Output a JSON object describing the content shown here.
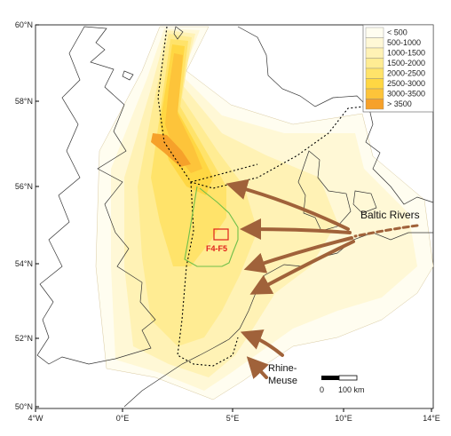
{
  "map": {
    "lat_labels": [
      "60°N",
      "58°N",
      "56°N",
      "54°N",
      "52°N",
      "50°N"
    ],
    "lon_labels": [
      "4°W",
      "0°E",
      "5°E",
      "10°E",
      "14°E"
    ],
    "legend": {
      "classes": [
        {
          "label": "< 500",
          "color": "#fffdf0"
        },
        {
          "label": "500-1000",
          "color": "#fff8d6"
        },
        {
          "label": "1000-1500",
          "color": "#fff2b5"
        },
        {
          "label": "1500-2000",
          "color": "#ffec93"
        },
        {
          "label": "2000-2500",
          "color": "#ffe36a"
        },
        {
          "label": "2500-3000",
          "color": "#ffd743"
        },
        {
          "label": "3000-3500",
          "color": "#fdc43a"
        },
        {
          "label": "> 3500",
          "color": "#f6a12a"
        }
      ]
    },
    "labels": {
      "baltic_rivers": "Baltic Rivers",
      "rhine_meuse_line1": "Rhine-",
      "rhine_meuse_line2": "Meuse",
      "box_label": "F4-F5"
    },
    "scale_bar": {
      "zero": "0",
      "distance": "100 km"
    },
    "colors": {
      "arrow": "#a0623a",
      "boundary": "#000000",
      "green_line": "#6fbf4a",
      "box": "#e0201b",
      "land_stroke": "#333333"
    }
  }
}
